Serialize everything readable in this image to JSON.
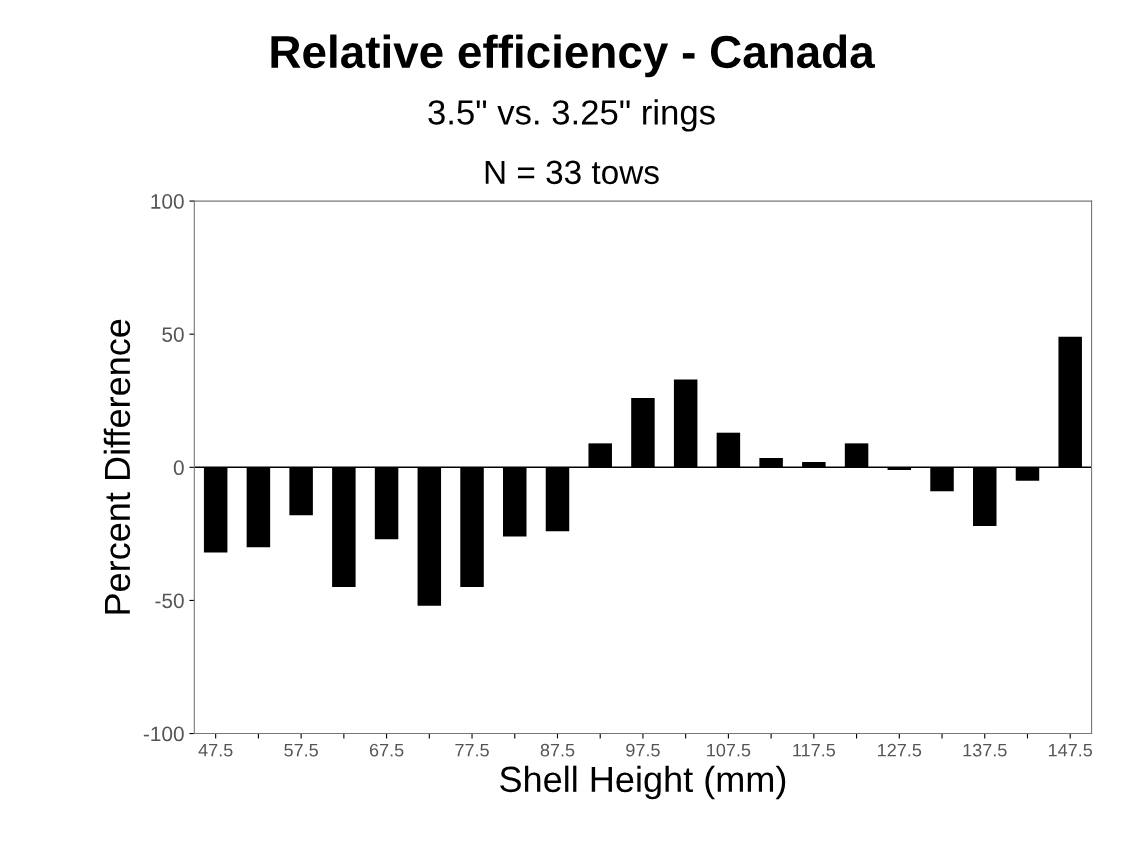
{
  "chart_data": {
    "type": "bar",
    "title": "Relative efficiency - Canada",
    "subtitle": "3.5\" vs. 3.25\" rings",
    "annotations": [
      "N = 33 tows"
    ],
    "xlabel": "Shell Height (mm)",
    "ylabel": "Percent Difference",
    "categories": [
      "47.5",
      null,
      "57.5",
      null,
      "67.5",
      null,
      "77.5",
      null,
      "87.5",
      null,
      "97.5",
      null,
      "107.5",
      null,
      "117.5",
      null,
      "127.5",
      null,
      "137.5",
      null,
      "147.5"
    ],
    "values": [
      -32,
      -30,
      -18,
      -45,
      -27,
      -52,
      -45,
      -26,
      -24,
      9,
      26,
      33,
      13,
      3.5,
      2,
      9,
      -1,
      -9,
      -22,
      -5,
      49
    ],
    "color": "#000000",
    "ylim": [
      -100,
      100
    ],
    "yticks": [
      -100,
      -50,
      0,
      50,
      100
    ],
    "ref_lines": [
      {
        "axis": "y",
        "value": 0,
        "color": "#000000"
      }
    ],
    "grid": false
  }
}
